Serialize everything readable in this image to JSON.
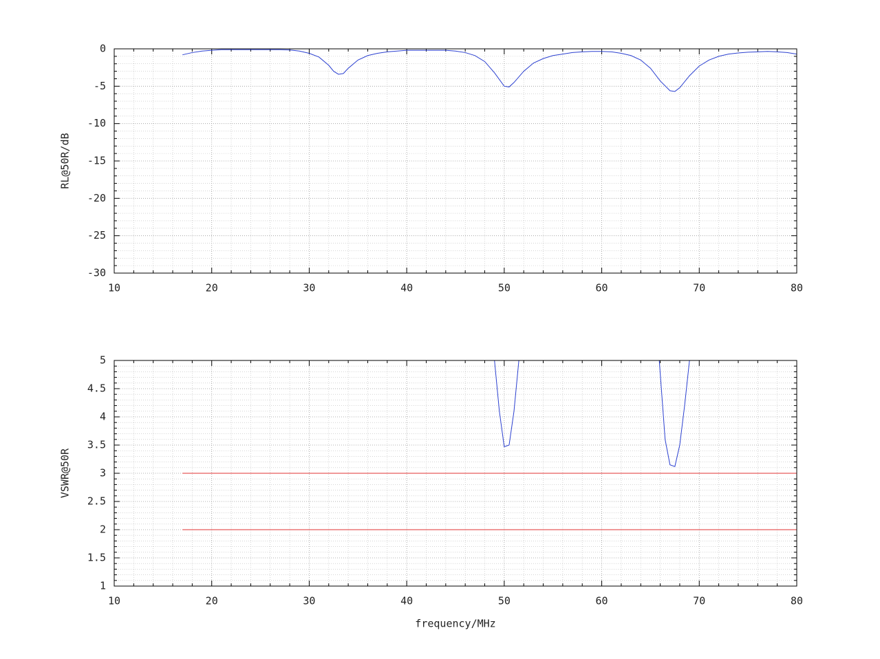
{
  "chart_data": [
    {
      "type": "line",
      "ylabel": "RL@50R/dB",
      "xlim": [
        10,
        80
      ],
      "xticks": [
        10,
        20,
        30,
        40,
        50,
        60,
        70,
        80
      ],
      "ylim": [
        -30,
        0
      ],
      "yticks": [
        0,
        -5,
        -10,
        -15,
        -20,
        -25,
        -30
      ],
      "grid": true,
      "series": [
        {
          "color": "#2a3fd0",
          "x": [
            17,
            18,
            19,
            20,
            21,
            22,
            23,
            24,
            25,
            26,
            27,
            28,
            29,
            30,
            31,
            32,
            32.5,
            33,
            33.5,
            34,
            35,
            36,
            37,
            38,
            39,
            40,
            41,
            42,
            43,
            44,
            45,
            46,
            47,
            48,
            49,
            50,
            50.5,
            51,
            52,
            53,
            54,
            55,
            56,
            57,
            58,
            59,
            60,
            61,
            62,
            63,
            64,
            65,
            66,
            67,
            67.5,
            68,
            69,
            70,
            71,
            72,
            73,
            74,
            75,
            76,
            77,
            78,
            79,
            80
          ],
          "values": [
            -0.8,
            -0.5,
            -0.3,
            -0.2,
            -0.1,
            -0.1,
            -0.1,
            -0.1,
            -0.1,
            -0.1,
            -0.1,
            -0.15,
            -0.3,
            -0.6,
            -1.1,
            -2.2,
            -3.0,
            -3.4,
            -3.3,
            -2.6,
            -1.5,
            -0.9,
            -0.6,
            -0.4,
            -0.3,
            -0.2,
            -0.2,
            -0.2,
            -0.2,
            -0.2,
            -0.3,
            -0.5,
            -0.9,
            -1.7,
            -3.2,
            -5.0,
            -5.1,
            -4.5,
            -3.0,
            -1.9,
            -1.3,
            -0.9,
            -0.7,
            -0.5,
            -0.4,
            -0.35,
            -0.35,
            -0.4,
            -0.6,
            -0.9,
            -1.5,
            -2.6,
            -4.3,
            -5.6,
            -5.7,
            -5.2,
            -3.6,
            -2.3,
            -1.5,
            -1.0,
            -0.7,
            -0.55,
            -0.45,
            -0.4,
            -0.35,
            -0.4,
            -0.5,
            -0.7
          ]
        }
      ]
    },
    {
      "type": "line",
      "ylabel": "VSWR@50R",
      "xlabel": "frequency/MHz",
      "xlim": [
        10,
        80
      ],
      "xticks": [
        10,
        20,
        30,
        40,
        50,
        60,
        70,
        80
      ],
      "ylim": [
        1,
        5
      ],
      "yticks": [
        5,
        4.5,
        4,
        3.5,
        3,
        2.5,
        2,
        1.5,
        1
      ],
      "grid": true,
      "series": [
        {
          "color": "#2a3fd0",
          "x": [
            49,
            49.5,
            50,
            50.5,
            51,
            51.5,
            null,
            65.9,
            66.5,
            67,
            67.5,
            68,
            68.5,
            69
          ],
          "values": [
            5,
            4.1,
            3.47,
            3.5,
            4.1,
            5,
            null,
            5,
            3.6,
            3.15,
            3.12,
            3.5,
            4.2,
            5
          ]
        },
        {
          "color": "#e03030",
          "x": [
            17,
            80
          ],
          "values": [
            3,
            3
          ]
        },
        {
          "color": "#e03030",
          "x": [
            17,
            80
          ],
          "values": [
            2,
            2
          ]
        }
      ]
    }
  ]
}
